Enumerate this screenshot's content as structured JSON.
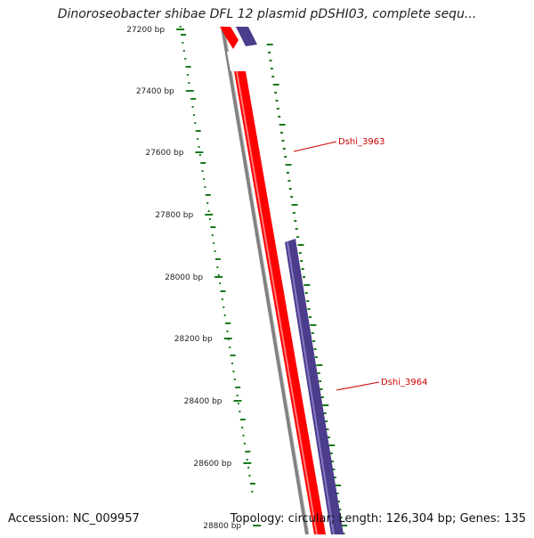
{
  "title": "Dinoroseobacter shibae DFL 12 plasmid pDSHI03, complete sequ...",
  "accession_text": "Accession: NC_009957",
  "info_text": "Topology: circular; Length: 126,304 bp; Genes: 135",
  "ruler": {
    "unit": "bp",
    "labels": [
      "27200 bp",
      "27400 bp",
      "27600 bp",
      "27800 bp",
      "28000 bp",
      "28200 bp",
      "28400 bp",
      "28600 bp",
      "28800 bp"
    ]
  },
  "genes": [
    {
      "name": "Dshi_3963",
      "strand": "forward",
      "color": "#ff0000"
    },
    {
      "name": "Dshi_3964",
      "strand": "forward",
      "color": "#4b3c8c"
    }
  ],
  "colors": {
    "backbone": "#808080",
    "forward_gene": "#ff0000",
    "reverse_gene": "#4b3c8c",
    "gc_ticks": "#1a7a1a",
    "gene_label": "#cc0000",
    "tick_label": "#222222"
  }
}
